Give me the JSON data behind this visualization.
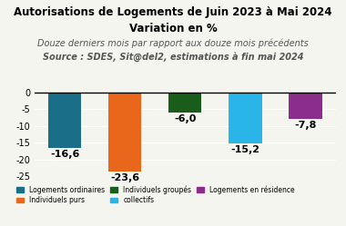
{
  "title_line1": "Autorisations de Logements de Juin 2023 à Mai 2024",
  "title_line2": "Variation en %",
  "subtitle": "Douze derniers mois par rapport aux douze mois précédents",
  "source": "Source : SDES, Sit@del2, estimations à fin mai 2024",
  "categories": [
    "Logements\nordinaires",
    "Individuels\npurs",
    "Individuels\ngroupés",
    "collectifs",
    "Logements\nen résidence"
  ],
  "values": [
    -16.6,
    -23.6,
    -6.0,
    -15.2,
    -7.8
  ],
  "colors": [
    "#1a6e87",
    "#e8671b",
    "#1a5c1a",
    "#2ab5e8",
    "#8b2d8b"
  ],
  "legend_labels": [
    "Logements ordinaires",
    "Individuels purs",
    "Individuels groupés",
    "collectifs",
    "Logements en résidence"
  ],
  "ylim": [
    -25,
    2
  ],
  "yticks": [
    0,
    -5,
    -10,
    -15,
    -20,
    -25
  ],
  "bar_width": 0.55,
  "background_color": "#f5f5f0",
  "title_fontsize": 8.5,
  "subtitle_fontsize": 7,
  "value_fontsize": 8
}
